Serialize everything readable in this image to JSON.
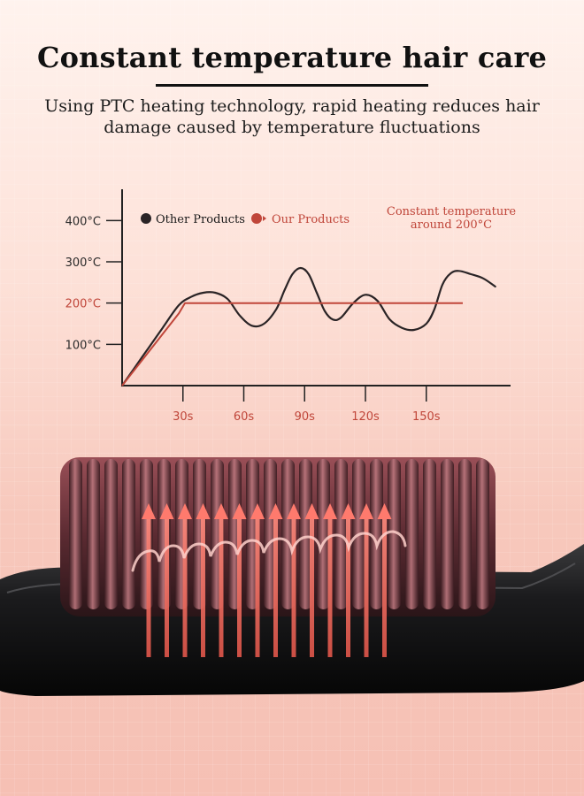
{
  "header": {
    "title": "Constant temperature hair care",
    "subtitle_line1": "Using PTC heating technology, rapid heating reduces hair",
    "subtitle_line2": "damage caused by temperature fluctuations"
  },
  "colors": {
    "other": "#2a2426",
    "ours": "#c0463a",
    "axis": "#222222"
  },
  "chart_data": {
    "type": "line",
    "x_ticks": [
      30,
      60,
      90,
      120,
      150
    ],
    "x_tick_labels": [
      "30s",
      "60s",
      "90s",
      "120s",
      "150s"
    ],
    "y_ticks": [
      100,
      200,
      300,
      400
    ],
    "y_tick_labels": [
      "100°C",
      "200°C",
      "300°C",
      "400°C"
    ],
    "xlim": [
      0,
      190
    ],
    "ylim": [
      0,
      475
    ],
    "legend_position": "top-left",
    "series": [
      {
        "name": "Other Products",
        "color": "#2a2426",
        "x": [
          0,
          10,
          20,
          28,
          34,
          40,
          46,
          52,
          58,
          64,
          70,
          76,
          80,
          84,
          88,
          92,
          96,
          100,
          104,
          108,
          114,
          120,
          126,
          132,
          138,
          144,
          150,
          154,
          158,
          162,
          166,
          172,
          178,
          184
        ],
        "y": [
          0,
          70,
          140,
          195,
          215,
          225,
          225,
          210,
          170,
          145,
          150,
          185,
          230,
          270,
          285,
          270,
          225,
          180,
          160,
          165,
          200,
          220,
          205,
          160,
          140,
          135,
          150,
          185,
          245,
          272,
          278,
          270,
          260,
          240
        ]
      },
      {
        "name": "Our Products",
        "color": "#c0463a",
        "x": [
          0,
          28,
          31,
          60,
          90,
          120,
          150,
          168
        ],
        "y": [
          0,
          175,
          200,
          200,
          200,
          200,
          200,
          200
        ]
      }
    ],
    "annotation": {
      "line1": "Constant temperature",
      "line2": "around 200°C"
    }
  }
}
